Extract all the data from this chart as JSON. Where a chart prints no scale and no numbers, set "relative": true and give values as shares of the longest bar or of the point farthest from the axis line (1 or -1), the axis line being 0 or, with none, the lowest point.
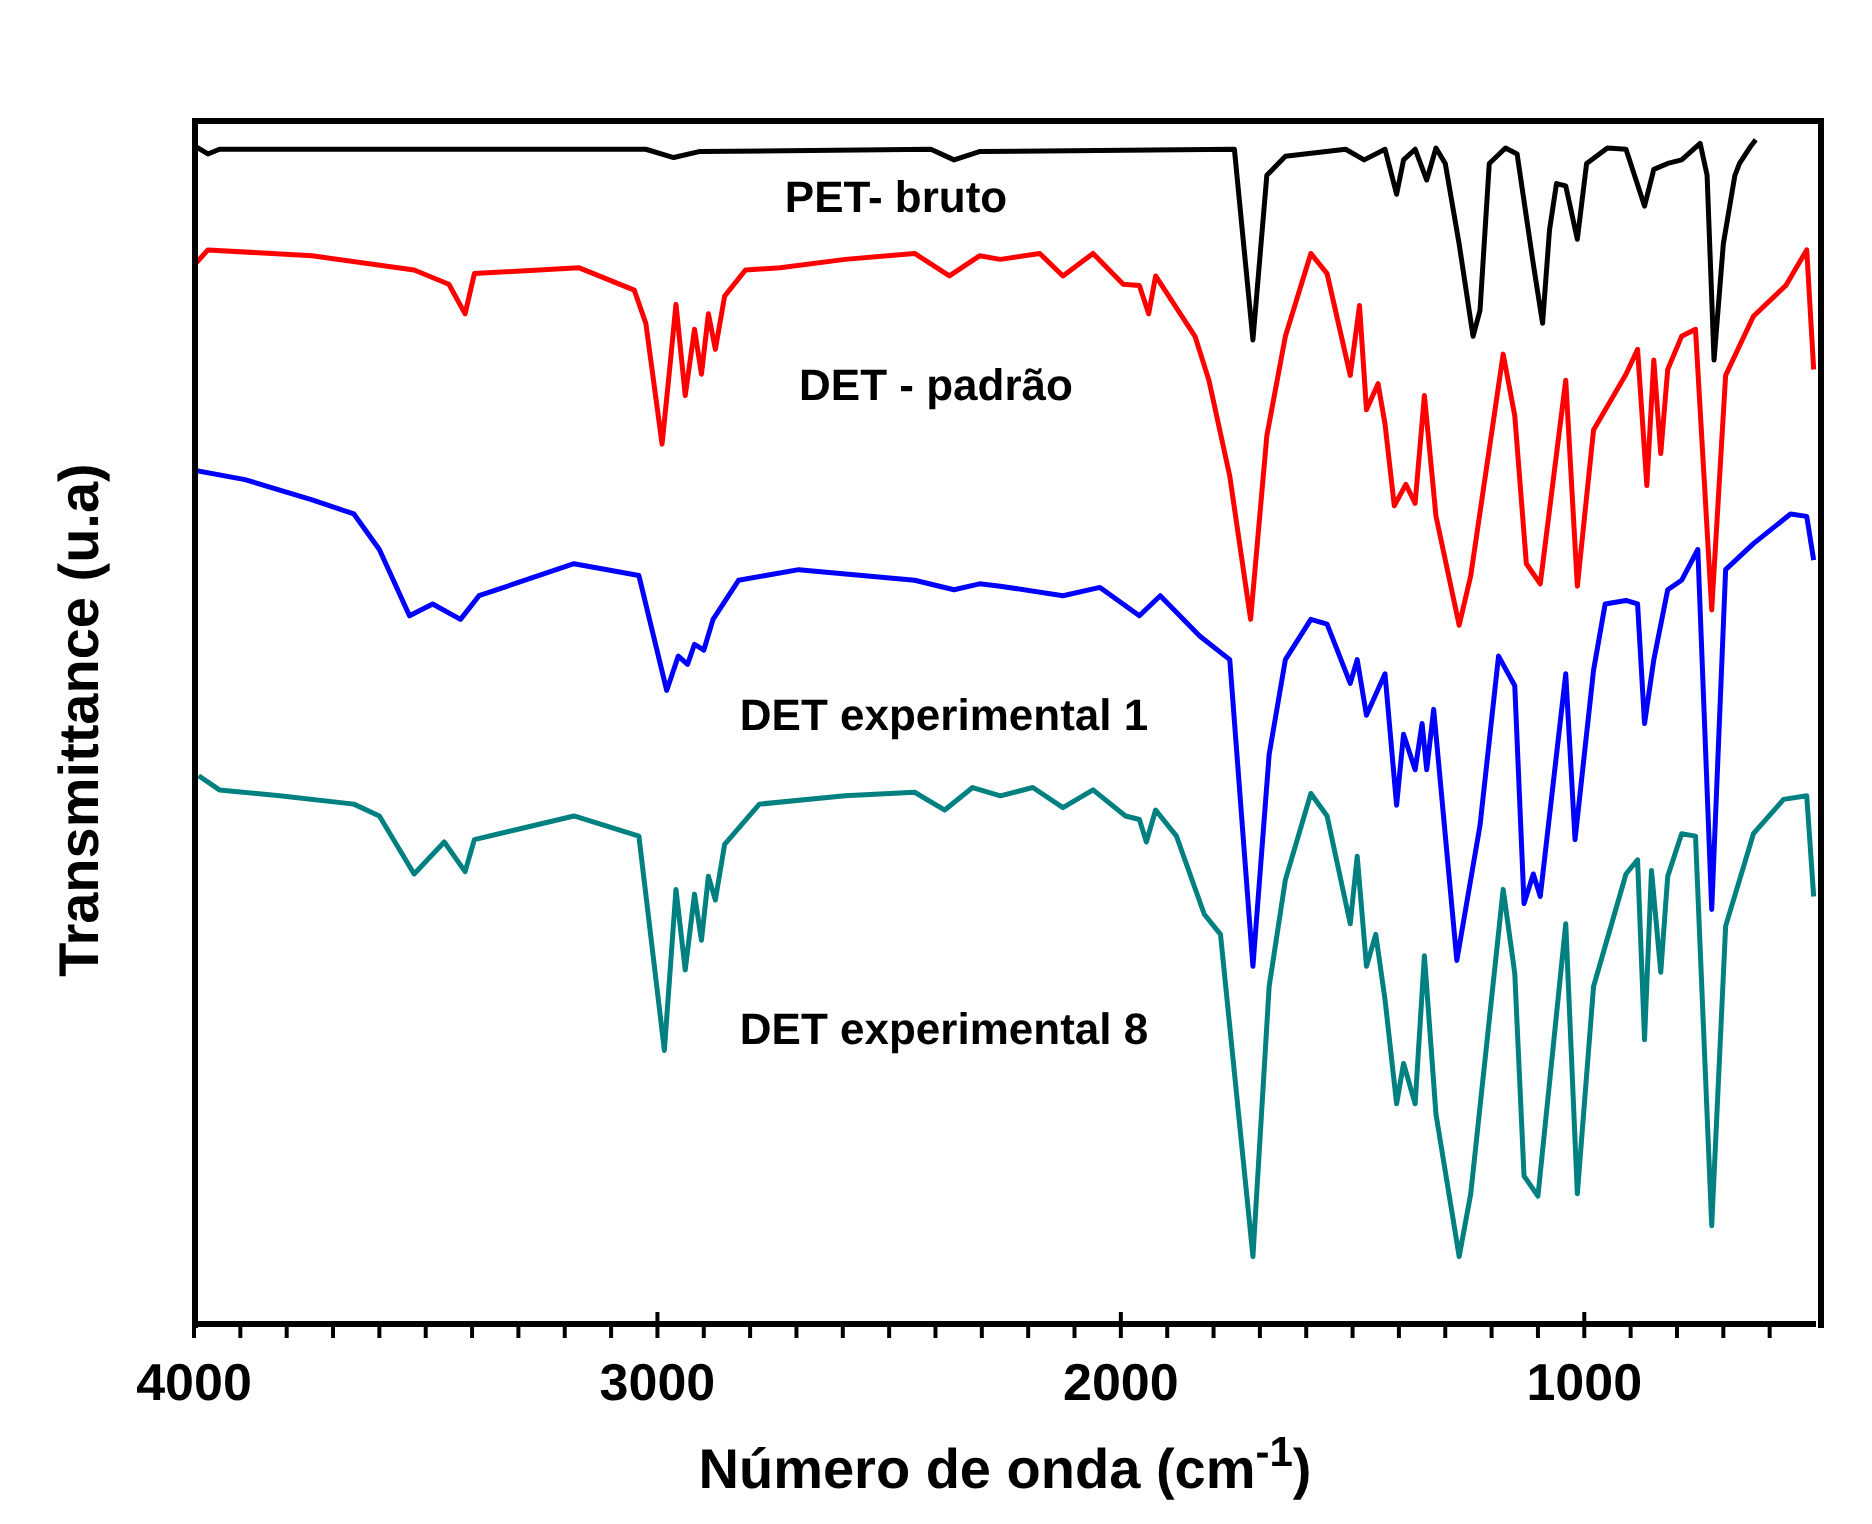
{
  "chart_data": {
    "type": "line",
    "relative": true,
    "xlabel": "Número de onda (cm$^{-1}$)",
    "ylabel": "Transmittance (u.a)",
    "xlim": [
      4000,
      500
    ],
    "xticks": [
      4000,
      {
        "value": 3900,
        "label": null
      },
      {
        "value": 3800,
        "label": null
      },
      {
        "value": 3700,
        "label": null
      },
      {
        "value": 3600,
        "label": null
      },
      {
        "value": 3500,
        "label": null
      },
      {
        "value": 3400,
        "label": null
      },
      {
        "value": 3300,
        "label": null
      },
      {
        "value": 3200,
        "label": null
      },
      {
        "value": 3100,
        "label": null
      },
      3000,
      {
        "value": 2900,
        "label": null
      },
      {
        "value": 2800,
        "label": null
      },
      {
        "value": 2700,
        "label": null
      },
      {
        "value": 2600,
        "label": null
      },
      {
        "value": 2500,
        "label": null
      },
      {
        "value": 2400,
        "label": null
      },
      {
        "value": 2300,
        "label": null
      },
      {
        "value": 2200,
        "label": null
      },
      {
        "value": 2100,
        "label": null
      },
      2000,
      {
        "value": 1900,
        "label": null
      },
      {
        "value": 1800,
        "label": null
      },
      {
        "value": 1700,
        "label": null
      },
      {
        "value": 1600,
        "label": null
      },
      {
        "value": 1500,
        "label": null
      },
      {
        "value": 1400,
        "label": null
      },
      {
        "value": 1300,
        "label": null
      },
      {
        "value": 1200,
        "label": null
      },
      {
        "value": 1100,
        "label": null
      },
      1000,
      {
        "value": 900,
        "label": null
      },
      {
        "value": 800,
        "label": null
      },
      {
        "value": 700,
        "label": null
      },
      {
        "value": 600,
        "label": null
      }
    ],
    "grid": false,
    "legend": false,
    "marker": "none",
    "line_style": "solid",
    "tick_labels": "x",
    "series": [
      {
        "name": "PET- bruto",
        "color": "#000000",
        "x": [
          4000,
          3970,
          3945,
          3025,
          2965,
          2910,
          2410,
          2360,
          2305,
          1755,
          1715,
          1685,
          1645,
          1515,
          1475,
          1430,
          1405,
          1390,
          1365,
          1340,
          1320,
          1300,
          1270,
          1240,
          1225,
          1205,
          1170,
          1145,
          1110,
          1090,
          1075,
          1060,
          1040,
          1015,
          995,
          950,
          910,
          870,
          850,
          820,
          790,
          750,
          735,
          720,
          700,
          675,
          665,
          640,
          630
        ],
        "values": [
          0.995,
          0.988,
          0.992,
          0.992,
          0.985,
          0.99,
          0.992,
          0.983,
          0.99,
          0.992,
          0.831,
          0.97,
          0.986,
          0.992,
          0.983,
          0.992,
          0.954,
          0.983,
          0.992,
          0.966,
          0.993,
          0.98,
          0.912,
          0.834,
          0.856,
          0.98,
          0.993,
          0.988,
          0.895,
          0.845,
          0.924,
          0.963,
          0.961,
          0.916,
          0.98,
          0.993,
          0.992,
          0.944,
          0.975,
          0.98,
          0.983,
          0.997,
          0.97,
          0.814,
          0.912,
          0.97,
          0.98,
          0.995,
          1.0
        ]
      },
      {
        "name": "DET - padrão",
        "color": "#ff0000",
        "x": [
          4000,
          3970,
          3745,
          3525,
          3450,
          3415,
          3395,
          3170,
          3050,
          3025,
          2990,
          2975,
          2960,
          2940,
          2920,
          2905,
          2890,
          2875,
          2855,
          2810,
          2735,
          2595,
          2445,
          2370,
          2305,
          2260,
          2175,
          2125,
          2060,
          1995,
          1960,
          1940,
          1925,
          1885,
          1840,
          1810,
          1765,
          1720,
          1685,
          1645,
          1590,
          1555,
          1505,
          1485,
          1470,
          1445,
          1430,
          1410,
          1385,
          1365,
          1345,
          1320,
          1270,
          1245,
          1175,
          1150,
          1125,
          1095,
          1040,
          1015,
          980,
          910,
          885,
          865,
          850,
          835,
          820,
          790,
          760,
          725,
          695,
          635,
          565,
          520,
          505
        ],
        "values": [
          0.894,
          0.907,
          0.902,
          0.89,
          0.878,
          0.853,
          0.887,
          0.892,
          0.873,
          0.845,
          0.743,
          0.801,
          0.861,
          0.784,
          0.84,
          0.802,
          0.853,
          0.823,
          0.868,
          0.89,
          0.892,
          0.899,
          0.904,
          0.885,
          0.902,
          0.899,
          0.904,
          0.885,
          0.904,
          0.878,
          0.877,
          0.853,
          0.885,
          0.861,
          0.834,
          0.797,
          0.716,
          0.595,
          0.75,
          0.834,
          0.904,
          0.887,
          0.801,
          0.86,
          0.772,
          0.794,
          0.76,
          0.691,
          0.709,
          0.693,
          0.784,
          0.682,
          0.59,
          0.632,
          0.819,
          0.767,
          0.642,
          0.625,
          0.797,
          0.623,
          0.755,
          0.802,
          0.823,
          0.708,
          0.814,
          0.735,
          0.806,
          0.834,
          0.84,
          0.603,
          0.801,
          0.851,
          0.877,
          0.907,
          0.806
        ]
      },
      {
        "name": "DET experimental 1",
        "color": "#0000ff",
        "x": [
          4000,
          3890,
          3745,
          3655,
          3600,
          3535,
          3485,
          3425,
          3385,
          3180,
          3040,
          2980,
          2955,
          2935,
          2920,
          2900,
          2880,
          2825,
          2695,
          2445,
          2360,
          2305,
          2260,
          2125,
          2045,
          1960,
          1915,
          1830,
          1765,
          1715,
          1680,
          1645,
          1590,
          1555,
          1505,
          1490,
          1470,
          1430,
          1405,
          1390,
          1365,
          1350,
          1340,
          1325,
          1275,
          1225,
          1185,
          1150,
          1130,
          1110,
          1095,
          1040,
          1020,
          980,
          955,
          910,
          885,
          870,
          850,
          820,
          790,
          755,
          725,
          695,
          635,
          555,
          520,
          505
        ],
        "values": [
          0.721,
          0.713,
          0.696,
          0.684,
          0.654,
          0.598,
          0.608,
          0.595,
          0.615,
          0.642,
          0.632,
          0.535,
          0.564,
          0.557,
          0.574,
          0.569,
          0.595,
          0.628,
          0.637,
          0.628,
          0.62,
          0.625,
          0.623,
          0.615,
          0.622,
          0.598,
          0.615,
          0.581,
          0.561,
          0.302,
          0.481,
          0.561,
          0.595,
          0.591,
          0.541,
          0.561,
          0.514,
          0.549,
          0.438,
          0.498,
          0.468,
          0.507,
          0.468,
          0.519,
          0.307,
          0.421,
          0.564,
          0.539,
          0.355,
          0.38,
          0.361,
          0.549,
          0.409,
          0.552,
          0.608,
          0.611,
          0.608,
          0.507,
          0.561,
          0.62,
          0.628,
          0.654,
          0.35,
          0.637,
          0.659,
          0.684,
          0.682,
          0.645
        ]
      },
      {
        "name": "DET experimental 8",
        "color": "#008080",
        "x": [
          3990,
          3945,
          3815,
          3655,
          3600,
          3525,
          3460,
          3415,
          3395,
          3180,
          3040,
          2985,
          2960,
          2940,
          2920,
          2905,
          2890,
          2875,
          2855,
          2780,
          2595,
          2445,
          2380,
          2320,
          2260,
          2190,
          2125,
          2060,
          1990,
          1960,
          1945,
          1925,
          1880,
          1820,
          1785,
          1715,
          1680,
          1645,
          1590,
          1555,
          1505,
          1490,
          1470,
          1450,
          1430,
          1405,
          1390,
          1365,
          1345,
          1320,
          1270,
          1245,
          1175,
          1150,
          1130,
          1100,
          1040,
          1015,
          980,
          910,
          885,
          870,
          855,
          835,
          820,
          790,
          760,
          725,
          695,
          635,
          570,
          520,
          505
        ],
        "values": [
          0.463,
          0.451,
          0.446,
          0.439,
          0.429,
          0.38,
          0.407,
          0.382,
          0.409,
          0.429,
          0.412,
          0.231,
          0.367,
          0.299,
          0.363,
          0.324,
          0.378,
          0.358,
          0.405,
          0.439,
          0.446,
          0.449,
          0.434,
          0.453,
          0.446,
          0.453,
          0.436,
          0.451,
          0.429,
          0.426,
          0.407,
          0.434,
          0.412,
          0.346,
          0.329,
          0.057,
          0.285,
          0.375,
          0.448,
          0.429,
          0.338,
          0.395,
          0.302,
          0.329,
          0.274,
          0.186,
          0.22,
          0.186,
          0.311,
          0.177,
          0.057,
          0.11,
          0.367,
          0.296,
          0.125,
          0.108,
          0.338,
          0.11,
          0.285,
          0.38,
          0.392,
          0.24,
          0.383,
          0.297,
          0.378,
          0.414,
          0.412,
          0.083,
          0.336,
          0.414,
          0.443,
          0.446,
          0.361
        ]
      }
    ]
  }
}
